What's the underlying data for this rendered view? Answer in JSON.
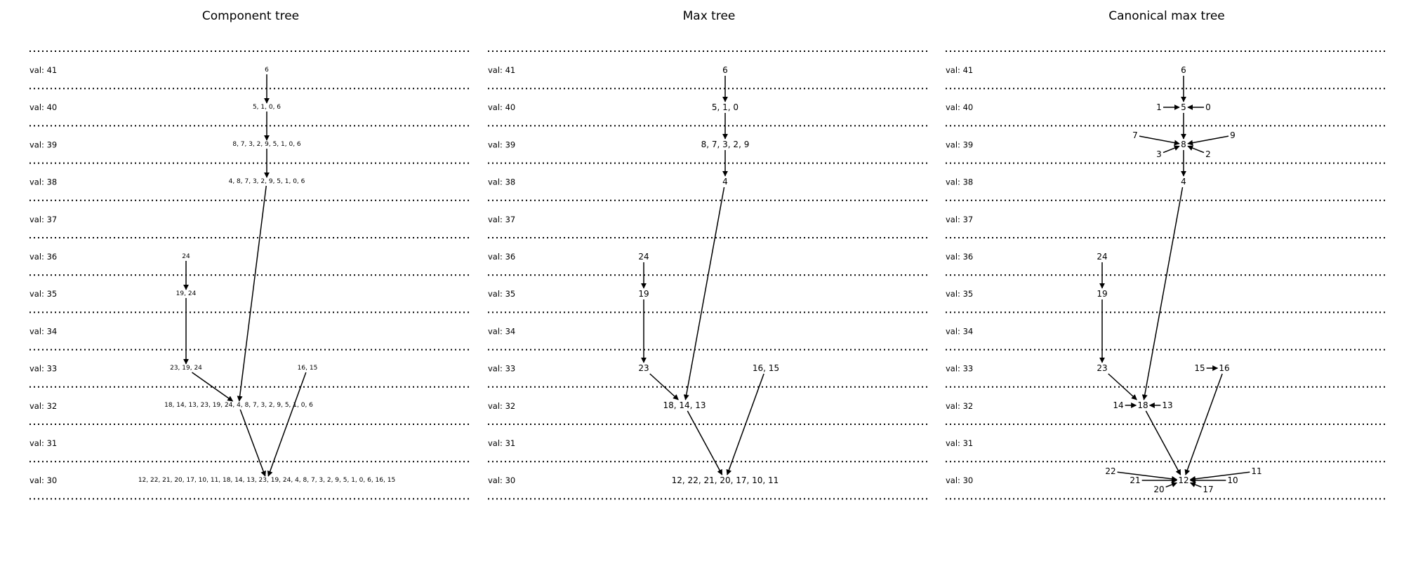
{
  "levels": [
    41,
    40,
    39,
    38,
    37,
    36,
    35,
    34,
    33,
    32,
    31,
    30
  ],
  "level_label_prefix": "val: ",
  "panels": [
    {
      "id": "component",
      "title": "Component tree",
      "nodes": [
        {
          "id": "c6",
          "label": "6",
          "level": 41
        },
        {
          "id": "c5",
          "label": "5, 1, 0, 6",
          "level": 40
        },
        {
          "id": "c8",
          "label": "8, 7, 3, 2, 9, 5, 1, 0, 6",
          "level": 39
        },
        {
          "id": "c4",
          "label": "4, 8, 7, 3, 2, 9, 5, 1, 0, 6",
          "level": 38
        },
        {
          "id": "c24",
          "label": "24",
          "level": 36
        },
        {
          "id": "c19",
          "label": "19, 24",
          "level": 35
        },
        {
          "id": "c23",
          "label": "23, 19, 24",
          "level": 33
        },
        {
          "id": "c16",
          "label": "16, 15",
          "level": 33
        },
        {
          "id": "c18",
          "label": "18, 14, 13, 23, 19, 24, 4, 8, 7, 3, 2, 9, 5, 1, 0, 6",
          "level": 32
        },
        {
          "id": "c12",
          "label": "12, 22, 21, 20, 17, 10, 11, 18, 14, 13, 23, 19, 24, 4, 8, 7, 3, 2, 9, 5, 1, 0, 6, 16, 15",
          "level": 30
        }
      ],
      "edges": [
        [
          "c6",
          "c5"
        ],
        [
          "c5",
          "c8"
        ],
        [
          "c8",
          "c4"
        ],
        [
          "c4",
          "c18"
        ],
        [
          "c24",
          "c19"
        ],
        [
          "c19",
          "c23"
        ],
        [
          "c23",
          "c18"
        ],
        [
          "c18",
          "c12"
        ],
        [
          "c16",
          "c12"
        ]
      ]
    },
    {
      "id": "max",
      "title": "Max tree",
      "nodes": [
        {
          "id": "m6",
          "label": "6",
          "level": 41
        },
        {
          "id": "m5",
          "label": "5, 1, 0",
          "level": 40
        },
        {
          "id": "m8",
          "label": "8, 7, 3, 2, 9",
          "level": 39
        },
        {
          "id": "m4",
          "label": "4",
          "level": 38
        },
        {
          "id": "m24",
          "label": "24",
          "level": 36
        },
        {
          "id": "m19",
          "label": "19",
          "level": 35
        },
        {
          "id": "m23",
          "label": "23",
          "level": 33
        },
        {
          "id": "m16",
          "label": "16, 15",
          "level": 33
        },
        {
          "id": "m18",
          "label": "18, 14, 13",
          "level": 32
        },
        {
          "id": "m12",
          "label": "12, 22, 21, 20, 17, 10, 11",
          "level": 30
        }
      ],
      "edges": [
        [
          "m6",
          "m5"
        ],
        [
          "m5",
          "m8"
        ],
        [
          "m8",
          "m4"
        ],
        [
          "m4",
          "m18"
        ],
        [
          "m24",
          "m19"
        ],
        [
          "m19",
          "m23"
        ],
        [
          "m23",
          "m18"
        ],
        [
          "m18",
          "m12"
        ],
        [
          "m16",
          "m12"
        ]
      ]
    },
    {
      "id": "canonical",
      "title": "Canonical max tree",
      "nodes": [
        {
          "id": "k6",
          "label": "6"
        },
        {
          "id": "k5",
          "label": "5"
        },
        {
          "id": "k1",
          "label": "1"
        },
        {
          "id": "k0",
          "label": "0"
        },
        {
          "id": "k8",
          "label": "8"
        },
        {
          "id": "k7",
          "label": "7"
        },
        {
          "id": "k9",
          "label": "9"
        },
        {
          "id": "k3",
          "label": "3"
        },
        {
          "id": "k2",
          "label": "2"
        },
        {
          "id": "k4",
          "label": "4"
        },
        {
          "id": "k24",
          "label": "24"
        },
        {
          "id": "k19",
          "label": "19"
        },
        {
          "id": "k23",
          "label": "23"
        },
        {
          "id": "k15",
          "label": "15"
        },
        {
          "id": "k16",
          "label": "16"
        },
        {
          "id": "k14",
          "label": "14"
        },
        {
          "id": "k18",
          "label": "18"
        },
        {
          "id": "k13",
          "label": "13"
        },
        {
          "id": "k22",
          "label": "22"
        },
        {
          "id": "k11",
          "label": "11"
        },
        {
          "id": "k21",
          "label": "21"
        },
        {
          "id": "k12",
          "label": "12"
        },
        {
          "id": "k10",
          "label": "10"
        },
        {
          "id": "k20",
          "label": "20"
        },
        {
          "id": "k17",
          "label": "17"
        }
      ],
      "edges": [
        [
          "k6",
          "k5"
        ],
        [
          "k1",
          "k5"
        ],
        [
          "k0",
          "k5"
        ],
        [
          "k5",
          "k8"
        ],
        [
          "k7",
          "k8"
        ],
        [
          "k9",
          "k8"
        ],
        [
          "k3",
          "k8"
        ],
        [
          "k2",
          "k8"
        ],
        [
          "k8",
          "k4"
        ],
        [
          "k4",
          "k18"
        ],
        [
          "k24",
          "k19"
        ],
        [
          "k19",
          "k23"
        ],
        [
          "k23",
          "k18"
        ],
        [
          "k14",
          "k18"
        ],
        [
          "k13",
          "k18"
        ],
        [
          "k15",
          "k16"
        ],
        [
          "k16",
          "k12"
        ],
        [
          "k18",
          "k12"
        ],
        [
          "k22",
          "k12"
        ],
        [
          "k21",
          "k12"
        ],
        [
          "k20",
          "k12"
        ],
        [
          "k11",
          "k12"
        ],
        [
          "k10",
          "k12"
        ],
        [
          "k17",
          "k12"
        ]
      ]
    }
  ]
}
